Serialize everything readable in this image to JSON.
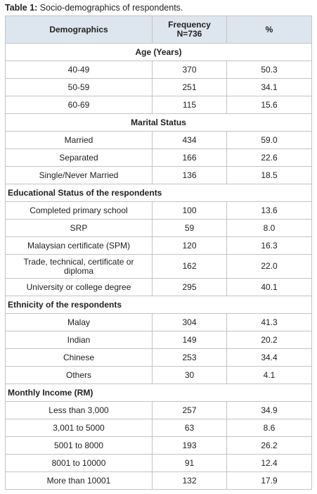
{
  "caption": {
    "label": "Table 1:",
    "text": "Socio-demographics of respondents."
  },
  "table": {
    "header": [
      "Demographics",
      "Frequency\nN=736",
      "%"
    ],
    "sections": [
      {
        "title": "Age (Years)",
        "rows": [
          [
            "40-49",
            "370",
            "50.3"
          ],
          [
            "50-59",
            "251",
            "34.1"
          ],
          [
            "60-69",
            "115",
            "15.6"
          ]
        ]
      },
      {
        "title": "Marital Status",
        "rows": [
          [
            "Married",
            "434",
            "59.0"
          ],
          [
            "Separated",
            "166",
            "22.6"
          ],
          [
            "Single/Never Married",
            "136",
            "18.5"
          ]
        ]
      },
      {
        "title": "Educational  Status of the respondents",
        "rows": [
          [
            "Completed primary school",
            "100",
            "13.6"
          ],
          [
            "SRP",
            "59",
            "8.0"
          ],
          [
            "Malaysian certificate (SPM)",
            "120",
            "16.3"
          ],
          [
            "Trade, technical, certificate or diploma",
            "162",
            "22.0"
          ],
          [
            "University or college degree",
            "295",
            "40.1"
          ]
        ]
      },
      {
        "title": "Ethnicity of the respondents",
        "rows": [
          [
            "Malay",
            "304",
            "41.3"
          ],
          [
            "Indian",
            "149",
            "20.2"
          ],
          [
            "Chinese",
            "253",
            "34.4"
          ],
          [
            "Others",
            "30",
            "4.1"
          ]
        ]
      },
      {
        "title": "Monthly Income (RM)",
        "rows": [
          [
            "Less than 3,000",
            "257",
            "34.9"
          ],
          [
            "3,001 to 5000",
            "63",
            "8.6"
          ],
          [
            "5001 to 8000",
            "193",
            "26.2"
          ],
          [
            "8001 to 10000",
            "91",
            "12.4"
          ],
          [
            "More than 10001",
            "132",
            "17.9"
          ]
        ]
      }
    ]
  }
}
